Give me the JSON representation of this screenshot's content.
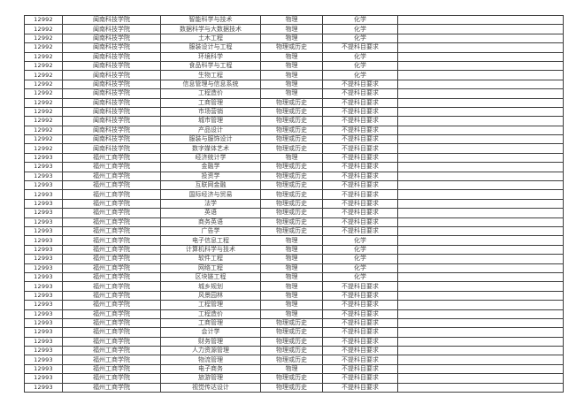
{
  "colors": {
    "background": "#ffffff",
    "border": "#3d3d3d",
    "text": "#4f4f4f",
    "code_text": "#2e2e2e"
  },
  "table": {
    "rows": [
      [
        "12992",
        "闽南科技学院",
        "智能科学与技术",
        "物理",
        "化学"
      ],
      [
        "12992",
        "闽南科技学院",
        "数据科学与大数据技术",
        "物理",
        "化学"
      ],
      [
        "12992",
        "闽南科技学院",
        "土木工程",
        "物理",
        "化学"
      ],
      [
        "12992",
        "闽南科技学院",
        "服装设计与工程",
        "物理或历史",
        "不提科目要求"
      ],
      [
        "12992",
        "闽南科技学院",
        "环境科学",
        "物理",
        "化学"
      ],
      [
        "12992",
        "闽南科技学院",
        "食品科学与工程",
        "物理",
        "化学"
      ],
      [
        "12992",
        "闽南科技学院",
        "生物工程",
        "物理",
        "化学"
      ],
      [
        "12992",
        "闽南科技学院",
        "信息管理与信息系统",
        "物理",
        "不提科目要求"
      ],
      [
        "12992",
        "闽南科技学院",
        "工程造价",
        "物理",
        "不提科目要求"
      ],
      [
        "12992",
        "闽南科技学院",
        "工商管理",
        "物理或历史",
        "不提科目要求"
      ],
      [
        "12992",
        "闽南科技学院",
        "市场营销",
        "物理或历史",
        "不提科目要求"
      ],
      [
        "12992",
        "闽南科技学院",
        "城市管理",
        "物理或历史",
        "不提科目要求"
      ],
      [
        "12992",
        "闽南科技学院",
        "产品设计",
        "物理或历史",
        "不提科目要求"
      ],
      [
        "12992",
        "闽南科技学院",
        "服装与服饰设计",
        "物理或历史",
        "不提科目要求"
      ],
      [
        "12992",
        "闽南科技学院",
        "数字媒体艺术",
        "物理或历史",
        "不提科目要求"
      ],
      [
        "12993",
        "福州工商学院",
        "经济统计学",
        "物理",
        "不提科目要求"
      ],
      [
        "12993",
        "福州工商学院",
        "金融学",
        "物理或历史",
        "不提科目要求"
      ],
      [
        "12993",
        "福州工商学院",
        "投资学",
        "物理或历史",
        "不提科目要求"
      ],
      [
        "12993",
        "福州工商学院",
        "互联网金融",
        "物理或历史",
        "不提科目要求"
      ],
      [
        "12993",
        "福州工商学院",
        "国际经济与贸易",
        "物理或历史",
        "不提科目要求"
      ],
      [
        "12993",
        "福州工商学院",
        "法学",
        "物理或历史",
        "不提科目要求"
      ],
      [
        "12993",
        "福州工商学院",
        "英语",
        "物理或历史",
        "不提科目要求"
      ],
      [
        "12993",
        "福州工商学院",
        "商务英语",
        "物理或历史",
        "不提科目要求"
      ],
      [
        "12993",
        "福州工商学院",
        "广告学",
        "物理或历史",
        "不提科目要求"
      ],
      [
        "12993",
        "福州工商学院",
        "电子信息工程",
        "物理",
        "化学"
      ],
      [
        "12993",
        "福州工商学院",
        "计算机科学与技术",
        "物理",
        "化学"
      ],
      [
        "12993",
        "福州工商学院",
        "软件工程",
        "物理",
        "化学"
      ],
      [
        "12993",
        "福州工商学院",
        "网络工程",
        "物理",
        "化学"
      ],
      [
        "12993",
        "福州工商学院",
        "区块链工程",
        "物理",
        "化学"
      ],
      [
        "12993",
        "福州工商学院",
        "城乡规划",
        "物理",
        "不提科目要求"
      ],
      [
        "12993",
        "福州工商学院",
        "风景园林",
        "物理",
        "不提科目要求"
      ],
      [
        "12993",
        "福州工商学院",
        "工程管理",
        "物理",
        "不提科目要求"
      ],
      [
        "12993",
        "福州工商学院",
        "工程造价",
        "物理",
        "不提科目要求"
      ],
      [
        "12993",
        "福州工商学院",
        "工商管理",
        "物理或历史",
        "不提科目要求"
      ],
      [
        "12993",
        "福州工商学院",
        "会计学",
        "物理或历史",
        "不提科目要求"
      ],
      [
        "12993",
        "福州工商学院",
        "财务管理",
        "物理或历史",
        "不提科目要求"
      ],
      [
        "12993",
        "福州工商学院",
        "人力资源管理",
        "物理或历史",
        "不提科目要求"
      ],
      [
        "12993",
        "福州工商学院",
        "物流管理",
        "物理或历史",
        "不提科目要求"
      ],
      [
        "12993",
        "福州工商学院",
        "电子商务",
        "物理",
        "不提科目要求"
      ],
      [
        "12993",
        "福州工商学院",
        "旅游管理",
        "物理或历史",
        "不提科目要求"
      ],
      [
        "12993",
        "福州工商学院",
        "视觉传达设计",
        "物理或历史",
        "不提科目要求"
      ]
    ]
  }
}
